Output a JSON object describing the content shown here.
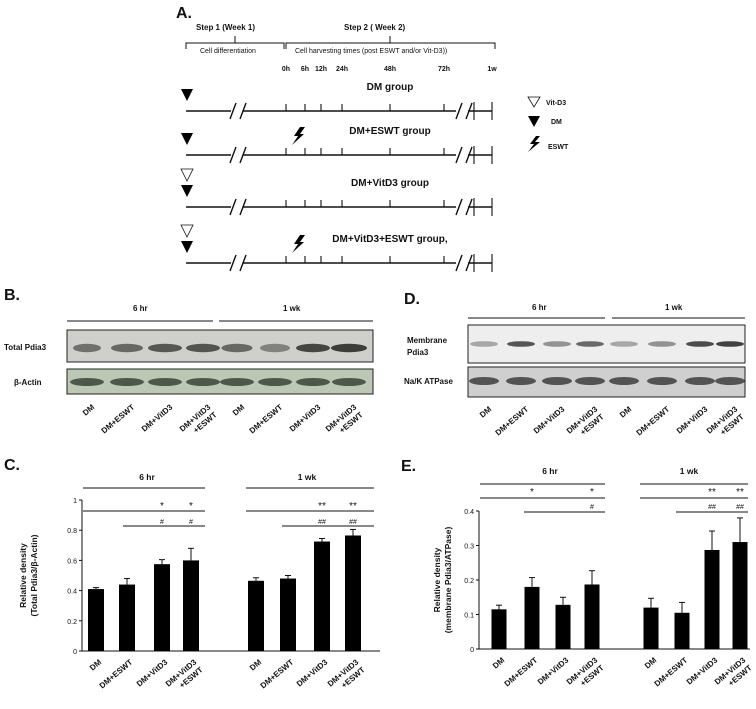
{
  "panels": {
    "A": {
      "label": "A.",
      "step1": "Step 1 (Week 1)",
      "step2": "Step 2  ( Week 2)",
      "differentiation": "Cell differentiation",
      "harvesting": "Cell harvesting times (post ESWT and/or Vit-D3))",
      "timepoints": [
        "0h",
        "6h",
        "12h",
        "24h",
        "48h",
        "72h",
        "1w"
      ],
      "groups": [
        "DM group",
        "DM+ESWT group",
        "DM+VitD3 group",
        "DM+VitD3+ESWT group,"
      ],
      "legend": [
        {
          "icon": "open-triangle-icon",
          "label": "Vit-D3"
        },
        {
          "icon": "filled-triangle-icon",
          "label": "DM"
        },
        {
          "icon": "lightning-icon",
          "label": "ESWT"
        }
      ]
    },
    "B": {
      "label": "B.",
      "periods": [
        "6 hr",
        "1 wk"
      ],
      "row_labels": [
        "Total Pdia3",
        "β-Actin"
      ],
      "lanes": [
        "DM",
        "DM+ESWT",
        "DM+VitD3",
        "DM+VitD3\n+ESWT",
        "DM",
        "DM+ESWT",
        "DM+VitD3",
        "DM+VitD3\n+ESWT"
      ]
    },
    "D": {
      "label": "D.",
      "periods": [
        "6 hr",
        "1 wk"
      ],
      "row_labels": [
        "Membrane\nPdia3",
        "Na/K ATPase"
      ],
      "lanes": [
        "DM",
        "DM+ESWT",
        "DM+VitD3",
        "DM+VitD3\n+ESWT",
        "DM",
        "DM+ESWT",
        "DM+VitD3",
        "DM+VitD3\n+ESWT"
      ]
    }
  },
  "chart_data": [
    {
      "panel": "C.",
      "type": "bar",
      "periods": [
        "6 hr",
        "1 wk"
      ],
      "categories": [
        "DM",
        "DM+ESWT",
        "DM+VitD3",
        "DM+VitD3\n+ESWT",
        "DM",
        "DM+ESWT",
        "DM+VitD3",
        "DM+VitD3\n+ESWT"
      ],
      "values": [
        0.41,
        0.44,
        0.575,
        0.6,
        0.465,
        0.48,
        0.725,
        0.765
      ],
      "errors": [
        0.01,
        0.04,
        0.03,
        0.08,
        0.02,
        0.02,
        0.02,
        0.04
      ],
      "ylabel": "Relative density\n(Total Pdia3/β-Actin)",
      "ylim": [
        0,
        1
      ],
      "yticks": [
        "0",
        "0.2",
        "0.4",
        "0.6",
        "0.8",
        "1"
      ],
      "yticks_v": [
        0,
        0.2,
        0.4,
        0.6,
        0.8,
        1
      ],
      "sig_star": [
        "",
        "",
        "*",
        "*",
        "",
        "",
        "**",
        "**"
      ],
      "sig_hash": [
        "",
        "",
        "#",
        "#",
        "",
        "",
        "##",
        "##"
      ],
      "bar_color": "#000000"
    },
    {
      "panel": "E.",
      "type": "bar",
      "periods": [
        "6 hr",
        "1 wk"
      ],
      "categories": [
        "DM",
        "DM+ESWT",
        "DM+VitD3",
        "DM+VitD3\n+ESWT",
        "DM",
        "DM+ESWT",
        "DM+VitD3",
        "DM+VitD3\n+ESWT"
      ],
      "values": [
        0.115,
        0.18,
        0.128,
        0.187,
        0.12,
        0.105,
        0.287,
        0.31
      ],
      "errors": [
        0.012,
        0.027,
        0.022,
        0.04,
        0.027,
        0.03,
        0.055,
        0.07
      ],
      "ylabel": "Relative density\n(membrane Pdia3/ATPase)",
      "ylim": [
        0,
        0.4
      ],
      "yticks": [
        "0",
        "0.1",
        "0.2",
        "0.3",
        "0.4"
      ],
      "yticks_v": [
        0,
        0.1,
        0.2,
        0.3,
        0.4
      ],
      "sig_star": [
        "",
        "*",
        "",
        "*",
        "",
        "",
        "**",
        "**"
      ],
      "sig_hash": [
        "",
        "",
        "",
        "#",
        "",
        "",
        "##",
        "##"
      ],
      "bar_color": "#000000"
    }
  ]
}
